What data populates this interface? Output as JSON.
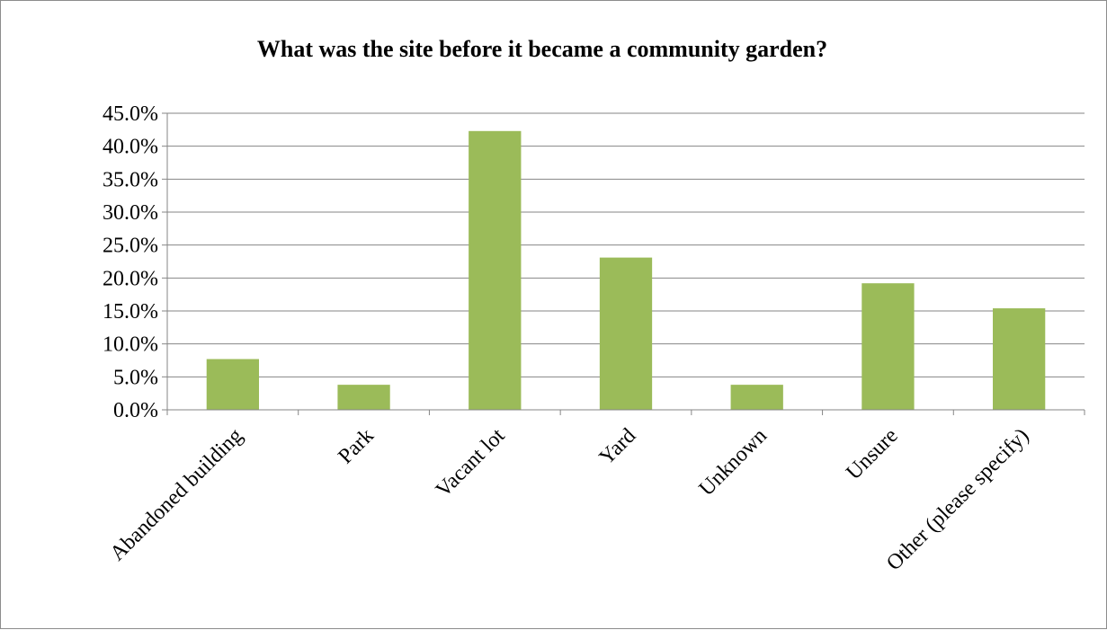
{
  "chart_data": {
    "type": "bar",
    "title": "What was the site before it became a community garden?",
    "xlabel": "",
    "ylabel": "",
    "categories": [
      "Abandoned building",
      "Park",
      "Vacant lot",
      "Yard",
      "Unknown",
      "Unsure",
      "Other (please specify)"
    ],
    "values": [
      7.7,
      3.8,
      42.3,
      23.1,
      3.8,
      19.2,
      15.4
    ],
    "ylim": [
      0,
      45
    ],
    "yticks": [
      0,
      5,
      10,
      15,
      20,
      25,
      30,
      35,
      40,
      45
    ],
    "ytick_labels": [
      "0.0%",
      "5.0%",
      "10.0%",
      "15.0%",
      "20.0%",
      "25.0%",
      "30.0%",
      "35.0%",
      "40.0%",
      "45.0%"
    ],
    "grid": true,
    "legend": "none",
    "bar_color": "#9bbb59"
  }
}
